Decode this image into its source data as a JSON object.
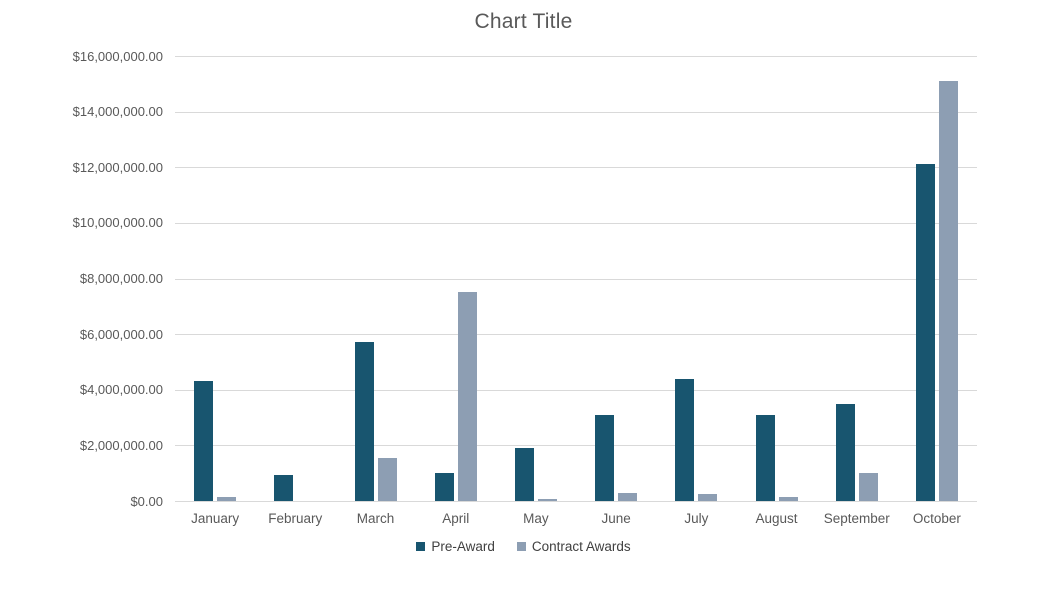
{
  "chart_data": {
    "type": "bar",
    "title": "Chart Title",
    "categories": [
      "January",
      "February",
      "March",
      "April",
      "May",
      "June",
      "July",
      "August",
      "September",
      "October"
    ],
    "series": [
      {
        "name": "Pre-Award",
        "color": "#18556F",
        "values": [
          4300000,
          950000,
          5700000,
          1000000,
          1900000,
          3100000,
          4400000,
          3100000,
          3500000,
          12100000
        ]
      },
      {
        "name": "Contract Awards",
        "color": "#8D9EB3",
        "values": [
          150000,
          0,
          1550000,
          7500000,
          75000,
          300000,
          250000,
          150000,
          1000000,
          15100000
        ]
      }
    ],
    "ylim": [
      0,
      16000000
    ],
    "ytick_interval": 2000000,
    "ytick_labels_top_to_bottom": [
      "$16,000,000.00",
      "$14,000,000.00",
      "$12,000,000.00",
      "$10,000,000.00",
      "$8,000,000.00",
      "$6,000,000.00",
      "$4,000,000.00",
      "$2,000,000.00",
      "$0.00"
    ],
    "xlabel": "",
    "ylabel": "",
    "grid": "horizontal",
    "legend_position": "bottom",
    "colors": {
      "background": "#FFFFFF",
      "title_text": "#595959",
      "axis_tick_text": "#595959",
      "gridline": "#D9D9D9",
      "legend_text": "#404040"
    }
  }
}
